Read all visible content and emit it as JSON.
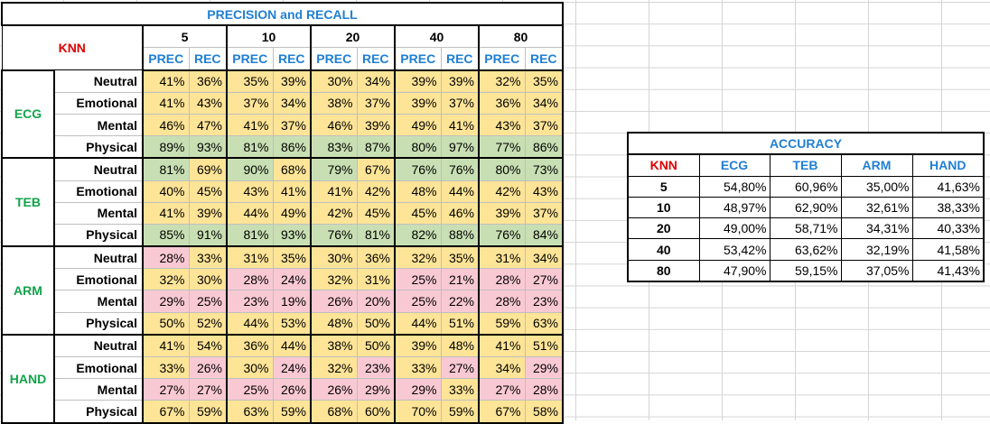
{
  "precision_recall": {
    "title": "PRECISION and RECALL",
    "corner_label": "KNN",
    "k_values": [
      "5",
      "10",
      "20",
      "40",
      "80"
    ],
    "prec_label": "PREC",
    "rec_label": "REC",
    "groups": [
      {
        "name": "ECG",
        "rows": [
          {
            "label": "Neutral",
            "values": [
              "41%",
              "36%",
              "35%",
              "39%",
              "30%",
              "34%",
              "39%",
              "39%",
              "32%",
              "35%"
            ],
            "colors": [
              "y",
              "y",
              "y",
              "y",
              "y",
              "y",
              "y",
              "y",
              "y",
              "y"
            ]
          },
          {
            "label": "Emotional",
            "values": [
              "41%",
              "43%",
              "37%",
              "34%",
              "38%",
              "37%",
              "39%",
              "37%",
              "36%",
              "34%"
            ],
            "colors": [
              "y",
              "y",
              "y",
              "y",
              "y",
              "y",
              "y",
              "y",
              "y",
              "y"
            ]
          },
          {
            "label": "Mental",
            "values": [
              "46%",
              "47%",
              "41%",
              "37%",
              "46%",
              "39%",
              "49%",
              "41%",
              "43%",
              "37%"
            ],
            "colors": [
              "y",
              "y",
              "y",
              "y",
              "y",
              "y",
              "y",
              "y",
              "y",
              "y"
            ]
          },
          {
            "label": "Physical",
            "values": [
              "89%",
              "93%",
              "81%",
              "86%",
              "83%",
              "87%",
              "80%",
              "97%",
              "77%",
              "86%"
            ],
            "colors": [
              "g",
              "g",
              "g",
              "g",
              "g",
              "g",
              "g",
              "g",
              "g",
              "g"
            ]
          }
        ]
      },
      {
        "name": "TEB",
        "rows": [
          {
            "label": "Neutral",
            "values": [
              "81%",
              "69%",
              "90%",
              "68%",
              "79%",
              "67%",
              "76%",
              "76%",
              "80%",
              "73%"
            ],
            "colors": [
              "g",
              "y",
              "g",
              "y",
              "g",
              "y",
              "g",
              "g",
              "g",
              "g"
            ]
          },
          {
            "label": "Emotional",
            "values": [
              "40%",
              "45%",
              "43%",
              "41%",
              "41%",
              "42%",
              "48%",
              "44%",
              "42%",
              "43%"
            ],
            "colors": [
              "y",
              "y",
              "y",
              "y",
              "y",
              "y",
              "y",
              "y",
              "y",
              "y"
            ]
          },
          {
            "label": "Mental",
            "values": [
              "41%",
              "39%",
              "44%",
              "49%",
              "42%",
              "45%",
              "45%",
              "46%",
              "39%",
              "37%"
            ],
            "colors": [
              "y",
              "y",
              "y",
              "y",
              "y",
              "y",
              "y",
              "y",
              "y",
              "y"
            ]
          },
          {
            "label": "Physical",
            "values": [
              "85%",
              "91%",
              "81%",
              "93%",
              "76%",
              "81%",
              "82%",
              "88%",
              "76%",
              "84%"
            ],
            "colors": [
              "g",
              "g",
              "g",
              "g",
              "g",
              "g",
              "g",
              "g",
              "g",
              "g"
            ]
          }
        ]
      },
      {
        "name": "ARM",
        "rows": [
          {
            "label": "Neutral",
            "values": [
              "28%",
              "33%",
              "31%",
              "35%",
              "30%",
              "36%",
              "32%",
              "35%",
              "31%",
              "34%"
            ],
            "colors": [
              "p",
              "y",
              "y",
              "y",
              "y",
              "y",
              "y",
              "y",
              "y",
              "y"
            ]
          },
          {
            "label": "Emotional",
            "values": [
              "32%",
              "30%",
              "28%",
              "24%",
              "32%",
              "31%",
              "25%",
              "21%",
              "28%",
              "27%"
            ],
            "colors": [
              "y",
              "y",
              "p",
              "p",
              "y",
              "y",
              "p",
              "p",
              "p",
              "p"
            ]
          },
          {
            "label": "Mental",
            "values": [
              "29%",
              "25%",
              "23%",
              "19%",
              "26%",
              "20%",
              "25%",
              "22%",
              "28%",
              "23%"
            ],
            "colors": [
              "p",
              "p",
              "p",
              "p",
              "p",
              "p",
              "p",
              "p",
              "p",
              "p"
            ]
          },
          {
            "label": "Physical",
            "values": [
              "50%",
              "52%",
              "44%",
              "53%",
              "48%",
              "50%",
              "44%",
              "51%",
              "59%",
              "63%"
            ],
            "colors": [
              "y",
              "y",
              "y",
              "y",
              "y",
              "y",
              "y",
              "y",
              "y",
              "y"
            ]
          }
        ]
      },
      {
        "name": "HAND",
        "rows": [
          {
            "label": "Neutral",
            "values": [
              "41%",
              "54%",
              "36%",
              "44%",
              "38%",
              "50%",
              "39%",
              "48%",
              "41%",
              "51%"
            ],
            "colors": [
              "y",
              "y",
              "y",
              "y",
              "y",
              "y",
              "y",
              "y",
              "y",
              "y"
            ]
          },
          {
            "label": "Emotional",
            "values": [
              "33%",
              "26%",
              "30%",
              "24%",
              "32%",
              "23%",
              "33%",
              "27%",
              "34%",
              "29%"
            ],
            "colors": [
              "y",
              "p",
              "y",
              "p",
              "y",
              "p",
              "y",
              "p",
              "y",
              "p"
            ]
          },
          {
            "label": "Mental",
            "values": [
              "27%",
              "27%",
              "25%",
              "26%",
              "26%",
              "29%",
              "29%",
              "33%",
              "27%",
              "28%"
            ],
            "colors": [
              "p",
              "p",
              "p",
              "p",
              "p",
              "p",
              "p",
              "y",
              "p",
              "p"
            ]
          },
          {
            "label": "Physical",
            "values": [
              "67%",
              "59%",
              "63%",
              "59%",
              "68%",
              "60%",
              "70%",
              "59%",
              "67%",
              "58%"
            ],
            "colors": [
              "y",
              "y",
              "y",
              "y",
              "y",
              "y",
              "y",
              "y",
              "y",
              "y"
            ]
          }
        ]
      }
    ]
  },
  "accuracy": {
    "title": "ACCURACY",
    "corner_label": "KNN",
    "columns": [
      "ECG",
      "TEB",
      "ARM",
      "HAND"
    ],
    "rows": [
      {
        "k": "5",
        "values": [
          "54,80%",
          "60,96%",
          "35,00%",
          "41,63%"
        ]
      },
      {
        "k": "10",
        "values": [
          "48,97%",
          "62,90%",
          "32,61%",
          "38,33%"
        ]
      },
      {
        "k": "20",
        "values": [
          "49,00%",
          "58,71%",
          "34,31%",
          "40,33%"
        ]
      },
      {
        "k": "40",
        "values": [
          "53,42%",
          "63,62%",
          "32,19%",
          "41,58%"
        ]
      },
      {
        "k": "80",
        "values": [
          "47,90%",
          "59,15%",
          "37,05%",
          "41,43%"
        ]
      }
    ]
  },
  "colors": {
    "yellow_fill": "#fde497",
    "green_fill": "#c8dfb3",
    "pink_fill": "#f9c9d3",
    "title_blue": "#1f7fd3",
    "knn_red": "#e00000",
    "group_green": "#12a34a"
  }
}
